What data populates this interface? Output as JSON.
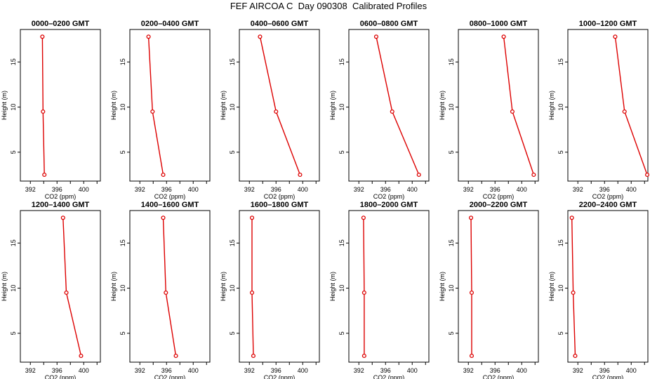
{
  "title": "FEF AIRCOA C  Day 090308  Calibrated Profiles",
  "chart_data": {
    "type": "line",
    "xlabel": "CO2 (ppm)",
    "ylabel": "Height (m)",
    "xlim": [
      390.5,
      402.5
    ],
    "ylim": [
      1.8,
      18.6
    ],
    "xticks": [
      "392",
      "396",
      "400"
    ],
    "yticks": [
      "5",
      "10",
      "15"
    ],
    "line_color": "#dd0000",
    "panels": [
      {
        "title": "0000–0200 GMT",
        "co2": [
          393.8,
          393.9,
          394.1
        ],
        "height": [
          17.8,
          9.5,
          2.5
        ]
      },
      {
        "title": "0200–0400 GMT",
        "co2": [
          393.3,
          393.9,
          395.5
        ],
        "height": [
          17.8,
          9.5,
          2.5
        ]
      },
      {
        "title": "0400–0600 GMT",
        "co2": [
          393.6,
          396.0,
          399.6
        ],
        "height": [
          17.8,
          9.5,
          2.5
        ]
      },
      {
        "title": "0600–0800 GMT",
        "co2": [
          394.6,
          397.0,
          401.0
        ],
        "height": [
          17.8,
          9.5,
          2.5
        ]
      },
      {
        "title": "0800–1000 GMT",
        "co2": [
          397.3,
          398.6,
          401.8
        ],
        "height": [
          17.8,
          9.5,
          2.5
        ]
      },
      {
        "title": "1000–1200 GMT",
        "co2": [
          397.6,
          399.0,
          402.4
        ],
        "height": [
          17.8,
          9.5,
          2.5
        ]
      },
      {
        "title": "1200–1400 GMT",
        "co2": [
          396.9,
          397.4,
          399.6
        ],
        "height": [
          17.8,
          9.5,
          2.5
        ]
      },
      {
        "title": "1400–1600 GMT",
        "co2": [
          395.5,
          395.9,
          397.4
        ],
        "height": [
          17.8,
          9.5,
          2.5
        ]
      },
      {
        "title": "1600–1800 GMT",
        "co2": [
          392.4,
          392.4,
          392.6
        ],
        "height": [
          17.8,
          9.5,
          2.5
        ]
      },
      {
        "title": "1800–2000 GMT",
        "co2": [
          392.7,
          392.8,
          392.8
        ],
        "height": [
          17.8,
          9.5,
          2.5
        ]
      },
      {
        "title": "2000–2200 GMT",
        "co2": [
          392.4,
          392.5,
          392.5
        ],
        "height": [
          17.8,
          9.5,
          2.5
        ]
      },
      {
        "title": "2200–2400 GMT",
        "co2": [
          391.1,
          391.3,
          391.6
        ],
        "height": [
          17.8,
          9.5,
          2.5
        ]
      }
    ]
  }
}
